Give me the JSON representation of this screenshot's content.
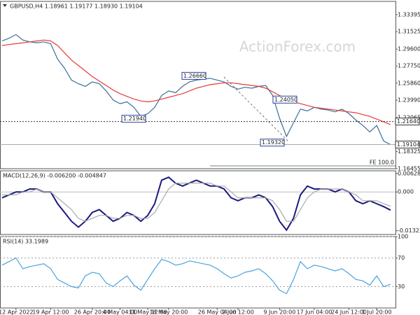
{
  "watermark": "ActionForex.com",
  "chart_data": [
    {
      "type": "line",
      "title": "GBPUSD,H4  1.18961 1.19177 1.18930 1.19104",
      "ylim": [
        1.1645,
        1.3485
      ],
      "yticks": [
        1.33395,
        1.31525,
        {
          "value": 1.296,
          "label": "1.29600"
        },
        {
          "value": 1.2775,
          "label": "1.27750"
        },
        {
          "value": 1.2586,
          "label": "1.25860"
        },
        {
          "value": 1.2399,
          "label": "1.23990"
        },
        1.22065,
        1.18325,
        1.16455
      ],
      "series": [
        {
          "color": "#3a6e96",
          "values": [
            1.305,
            1.308,
            1.312,
            1.306,
            1.304,
            1.303,
            1.304,
            1.302,
            1.285,
            1.275,
            1.262,
            1.258,
            1.255,
            1.26,
            1.258,
            1.25,
            1.24,
            1.236,
            1.238,
            1.232,
            1.222,
            1.225,
            1.232,
            1.245,
            1.25,
            1.248,
            1.255,
            1.26,
            1.262,
            1.263,
            1.264,
            1.262,
            1.26,
            1.255,
            1.252,
            1.254,
            1.253,
            1.255,
            1.256,
            1.245,
            1.22,
            1.2,
            1.215,
            1.23,
            1.228,
            1.232,
            1.23,
            1.229,
            1.227,
            1.23,
            1.225,
            1.218,
            1.212,
            1.205,
            1.212,
            1.195,
            1.191
          ]
        },
        {
          "color": "#e63a3a",
          "values": [
            1.3,
            1.301,
            1.302,
            1.303,
            1.304,
            1.305,
            1.306,
            1.305,
            1.3,
            1.292,
            1.284,
            1.278,
            1.272,
            1.266,
            1.261,
            1.256,
            1.251,
            1.247,
            1.244,
            1.241,
            1.239,
            1.238,
            1.239,
            1.241,
            1.243,
            1.245,
            1.247,
            1.25,
            1.253,
            1.255,
            1.257,
            1.258,
            1.259,
            1.259,
            1.258,
            1.257,
            1.256,
            1.255,
            1.253,
            1.249,
            1.245,
            1.241,
            1.238,
            1.236,
            1.234,
            1.232,
            1.231,
            1.23,
            1.229,
            1.228,
            1.227,
            1.226,
            1.224,
            1.222,
            1.219,
            1.216,
            1.213
          ]
        }
      ],
      "annotations": [
        {
          "value": 1.2666,
          "label": "1.26660"
        },
        {
          "value": 1.2194,
          "label": "1.21940"
        },
        {
          "value": 1.2405,
          "label": "1.24050"
        },
        {
          "value": 1.1932,
          "label": "1.19320"
        }
      ],
      "hlines": [
        {
          "value": 1.2164,
          "label": "1.21640"
        },
        {
          "value": 1.19104,
          "label": "1.19104"
        }
      ],
      "fe_label": "FE 100.0"
    },
    {
      "type": "line",
      "title": "MACD(12,26,9) -0.006200 -0.004847",
      "ylim": [
        -0.0145,
        0.0072
      ],
      "yticks": [
        0.006285,
        {
          "value": 0,
          "label": "0.000"
        },
        -0.013223
      ],
      "series": [
        {
          "color": "#1a1a80",
          "values": [
            -0.002,
            -0.001,
            0.0,
            0.0,
            0.001,
            0.001,
            0.0,
            0.0,
            -0.004,
            -0.007,
            -0.01,
            -0.012,
            -0.01,
            -0.007,
            -0.006,
            -0.008,
            -0.01,
            -0.009,
            -0.007,
            -0.008,
            -0.01,
            -0.008,
            -0.004,
            0.004,
            0.005,
            0.003,
            0.002,
            0.003,
            0.004,
            0.003,
            0.002,
            0.002,
            0.001,
            -0.002,
            -0.003,
            -0.002,
            -0.002,
            -0.001,
            -0.002,
            -0.005,
            -0.01,
            -0.013,
            -0.009,
            -0.001,
            0.002,
            0.001,
            0.001,
            0.001,
            0.0,
            0.001,
            0.0,
            -0.003,
            -0.004,
            -0.003,
            -0.004,
            -0.005,
            -0.0062
          ]
        },
        {
          "color": "#aaaaaa",
          "values": [
            -0.001,
            -0.001,
            -0.001,
            0.0,
            0.0,
            0.001,
            0.0,
            0.0,
            -0.002,
            -0.004,
            -0.006,
            -0.009,
            -0.01,
            -0.009,
            -0.008,
            -0.008,
            -0.009,
            -0.009,
            -0.008,
            -0.008,
            -0.009,
            -0.009,
            -0.007,
            -0.003,
            0.001,
            0.003,
            0.003,
            0.003,
            0.003,
            0.003,
            0.003,
            0.002,
            0.002,
            0.0,
            -0.002,
            -0.002,
            -0.002,
            -0.002,
            -0.002,
            -0.003,
            -0.006,
            -0.01,
            -0.01,
            -0.006,
            -0.002,
            0.0,
            0.001,
            0.001,
            0.001,
            0.001,
            0.0,
            -0.001,
            -0.003,
            -0.003,
            -0.003,
            -0.004,
            -0.004847
          ]
        }
      ]
    },
    {
      "type": "line",
      "title": "RSI(14) 33.1989",
      "ylim": [
        0,
        100
      ],
      "yticks": [
        100,
        70,
        30
      ],
      "categories": [
        null,
        null,
        "12 Apr 2022",
        null,
        null,
        null,
        null,
        "19 Apr 12:00",
        null,
        null,
        null,
        null,
        null,
        "26 Apr 20:00",
        null,
        null,
        null,
        "4 May 04:00",
        null,
        null,
        null,
        "11 May 12:00",
        null,
        null,
        "18 May 20:00",
        null,
        null,
        null,
        null,
        null,
        null,
        "26 May 04:00",
        null,
        null,
        "2 Jun 12:00",
        null,
        null,
        null,
        null,
        null,
        "9 Jun 20:00",
        null,
        null,
        null,
        null,
        "17 Jun 04:00",
        null,
        null,
        null,
        null,
        "24 Jun 12:00",
        null,
        null,
        null,
        "1 Jul 20:00",
        null,
        null
      ],
      "series": [
        {
          "color": "#4aa3df",
          "values": [
            60,
            65,
            70,
            55,
            58,
            60,
            62,
            55,
            40,
            35,
            30,
            28,
            45,
            50,
            48,
            35,
            30,
            38,
            45,
            32,
            25,
            40,
            55,
            68,
            65,
            60,
            62,
            66,
            64,
            62,
            60,
            55,
            48,
            42,
            45,
            50,
            52,
            55,
            48,
            38,
            25,
            20,
            40,
            65,
            55,
            60,
            58,
            55,
            52,
            55,
            48,
            40,
            38,
            32,
            45,
            30,
            33.1989
          ]
        }
      ]
    }
  ]
}
